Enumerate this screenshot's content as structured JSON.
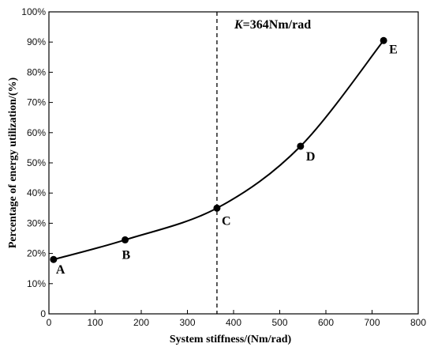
{
  "chart_data": {
    "type": "line",
    "xlabel": "System stiffness/(Nm/rad)",
    "ylabel": "Percentage of energy utilization/(%)",
    "xlim": [
      0,
      800
    ],
    "ylim": [
      0,
      100
    ],
    "x_ticks": [
      "0",
      "100",
      "200",
      "300",
      "400",
      "500",
      "600",
      "700",
      "800"
    ],
    "y_ticks": [
      "0",
      "10%",
      "20%",
      "30%",
      "40%",
      "50%",
      "60%",
      "70%",
      "80%",
      "90%",
      "100%"
    ],
    "grid": false,
    "series": [
      {
        "points": [
          {
            "label": "A",
            "x": 10,
            "y": 18
          },
          {
            "label": "B",
            "x": 165,
            "y": 24.5
          },
          {
            "label": "C",
            "x": 364,
            "y": 35
          },
          {
            "label": "D",
            "x": 545,
            "y": 55.5
          },
          {
            "label": "E",
            "x": 725,
            "y": 90.5
          }
        ]
      }
    ],
    "annotations": [
      {
        "type": "vertical-dashed-line",
        "x": 364,
        "text_var": "K",
        "text_rest": "=364Nm/rad"
      }
    ],
    "colors": {
      "line": "#000000",
      "marker": "#000000",
      "axis": "#000000"
    }
  }
}
